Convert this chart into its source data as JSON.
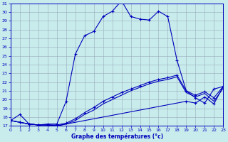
{
  "title": "Graphe des températures (°c)",
  "bg_color": "#c8ecec",
  "grid_color": "#99aabb",
  "line_color": "#0000bb",
  "xlim": [
    0,
    23
  ],
  "ylim": [
    17,
    31
  ],
  "yticks": [
    17,
    18,
    19,
    20,
    21,
    22,
    23,
    24,
    25,
    26,
    27,
    28,
    29,
    30,
    31
  ],
  "xticks": [
    0,
    1,
    2,
    3,
    4,
    5,
    6,
    7,
    8,
    9,
    10,
    11,
    12,
    13,
    14,
    15,
    16,
    17,
    18,
    19,
    20,
    21,
    22,
    23
  ],
  "line1_x": [
    0,
    1,
    2,
    3,
    4,
    5,
    6,
    7,
    8,
    9,
    10,
    11,
    12,
    13,
    14,
    15,
    16,
    17,
    18,
    19,
    20,
    21,
    22,
    23
  ],
  "line1_y": [
    17.6,
    18.3,
    17.2,
    17.1,
    17.2,
    17.2,
    19.8,
    25.2,
    27.3,
    27.8,
    29.5,
    30.1,
    31.3,
    29.5,
    29.2,
    29.1,
    30.1,
    29.5,
    24.5,
    21.0,
    20.2,
    19.6,
    21.2,
    21.5
  ],
  "line2_x": [
    0,
    1,
    2,
    3,
    4,
    5,
    6,
    7,
    8,
    9,
    10,
    11,
    12,
    13,
    14,
    15,
    16,
    17,
    18,
    19,
    20,
    21,
    22,
    23
  ],
  "line2_y": [
    17.6,
    17.4,
    17.2,
    17.1,
    17.1,
    17.1,
    17.3,
    17.8,
    18.5,
    19.1,
    19.8,
    20.3,
    20.8,
    21.2,
    21.6,
    22.0,
    22.3,
    22.5,
    22.8,
    21.0,
    20.5,
    20.9,
    20.2,
    21.5
  ],
  "line3_x": [
    0,
    1,
    2,
    3,
    4,
    5,
    6,
    7,
    8,
    9,
    10,
    11,
    12,
    13,
    14,
    15,
    16,
    17,
    18,
    19,
    20,
    21,
    22,
    23
  ],
  "line3_y": [
    17.6,
    17.4,
    17.2,
    17.1,
    17.1,
    17.0,
    17.2,
    17.6,
    18.3,
    18.8,
    19.5,
    20.0,
    20.5,
    21.0,
    21.4,
    21.8,
    22.1,
    22.3,
    22.6,
    20.8,
    20.3,
    20.7,
    19.8,
    21.3
  ],
  "line4_x": [
    0,
    1,
    2,
    3,
    4,
    5,
    19,
    20,
    21,
    22,
    23
  ],
  "line4_y": [
    17.6,
    17.4,
    17.2,
    17.1,
    17.1,
    17.0,
    19.8,
    19.6,
    20.3,
    19.5,
    21.5
  ]
}
